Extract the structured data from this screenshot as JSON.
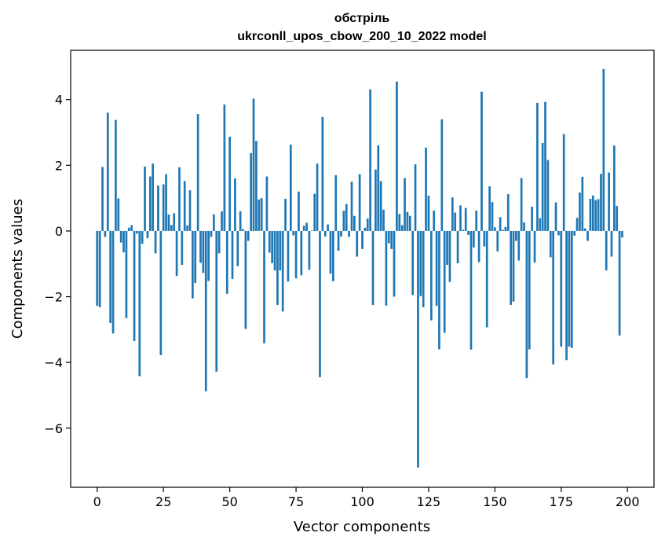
{
  "chart_data": {
    "type": "bar",
    "title": "обстріль",
    "subtitle": "ukrconll_upos_cbow_200_10_2022 model",
    "xlabel": "Vector components",
    "ylabel": "Components values",
    "xlim": [
      -10,
      210
    ],
    "ylim": [
      -7.8,
      5.5
    ],
    "xticks": [
      0,
      25,
      50,
      75,
      100,
      125,
      150,
      175,
      200
    ],
    "yticks": [
      4,
      2,
      0,
      -2,
      -4,
      -6
    ],
    "ytick_labels": [
      "4",
      "2",
      "0",
      "−2",
      "−4",
      "−6"
    ],
    "bar_color": "#1f77b4",
    "grid": false,
    "values": [
      -2.28,
      -2.32,
      1.95,
      -0.18,
      3.6,
      -2.8,
      -3.12,
      3.38,
      0.99,
      -0.35,
      -0.65,
      -2.65,
      0.1,
      0.18,
      -3.35,
      -0.08,
      -4.42,
      -0.39,
      1.96,
      -0.22,
      1.66,
      2.05,
      -0.68,
      1.38,
      -3.78,
      1.42,
      1.73,
      0.5,
      0.18,
      0.54,
      -1.37,
      1.94,
      -1.03,
      1.52,
      0.17,
      1.24,
      -2.05,
      -1.58,
      3.56,
      -0.97,
      -1.28,
      -4.88,
      -1.52,
      -0.18,
      0.51,
      -4.28,
      -0.68,
      0.6,
      3.85,
      -1.91,
      2.87,
      -1.46,
      1.6,
      -1.07,
      0.6,
      0.06,
      -2.98,
      -0.3,
      2.37,
      4.03,
      2.74,
      0.96,
      1.0,
      -3.42,
      1.66,
      -0.66,
      -0.98,
      -1.2,
      -2.25,
      -1.2,
      -2.45,
      0.98,
      -1.54,
      2.63,
      -0.13,
      -1.44,
      1.2,
      -1.35,
      0.16,
      0.25,
      -1.18,
      0.02,
      1.13,
      2.05,
      -4.45,
      3.47,
      -0.17,
      0.2,
      -1.3,
      -1.53,
      1.7,
      -0.6,
      -0.17,
      0.62,
      0.82,
      -0.18,
      1.5,
      0.46,
      -0.78,
      1.73,
      -0.55,
      0.1,
      0.38,
      4.31,
      -2.25,
      1.87,
      2.61,
      1.52,
      0.65,
      -2.27,
      -0.37,
      -0.55,
      -2.0,
      4.55,
      0.52,
      0.18,
      1.61,
      0.58,
      0.46,
      -1.95,
      2.03,
      -7.2,
      -1.98,
      -2.32,
      2.54,
      1.08,
      -2.72,
      0.62,
      -2.28,
      -3.6,
      3.4,
      -3.1,
      -1.03,
      -1.55,
      1.02,
      0.56,
      -0.98,
      0.78,
      0.04,
      0.7,
      -0.12,
      -3.61,
      -0.5,
      0.62,
      -0.95,
      4.24,
      -0.47,
      -2.93,
      1.36,
      0.88,
      0.11,
      -0.62,
      0.42,
      0.04,
      0.12,
      1.12,
      -2.25,
      -2.15,
      -0.3,
      -0.9,
      1.61,
      0.26,
      -4.48,
      -3.6,
      0.74,
      -0.96,
      3.9,
      0.39,
      2.68,
      3.93,
      2.16,
      -0.8,
      -4.06,
      0.87,
      -0.13,
      -3.52,
      2.95,
      -3.93,
      -3.52,
      -3.56,
      -0.14,
      0.4,
      1.17,
      1.65,
      0.08,
      -0.3,
      0.98,
      1.08,
      0.94,
      0.97,
      1.74,
      4.93,
      -1.2,
      1.78,
      -0.78,
      2.6,
      0.76,
      -3.18,
      -0.2
    ]
  }
}
